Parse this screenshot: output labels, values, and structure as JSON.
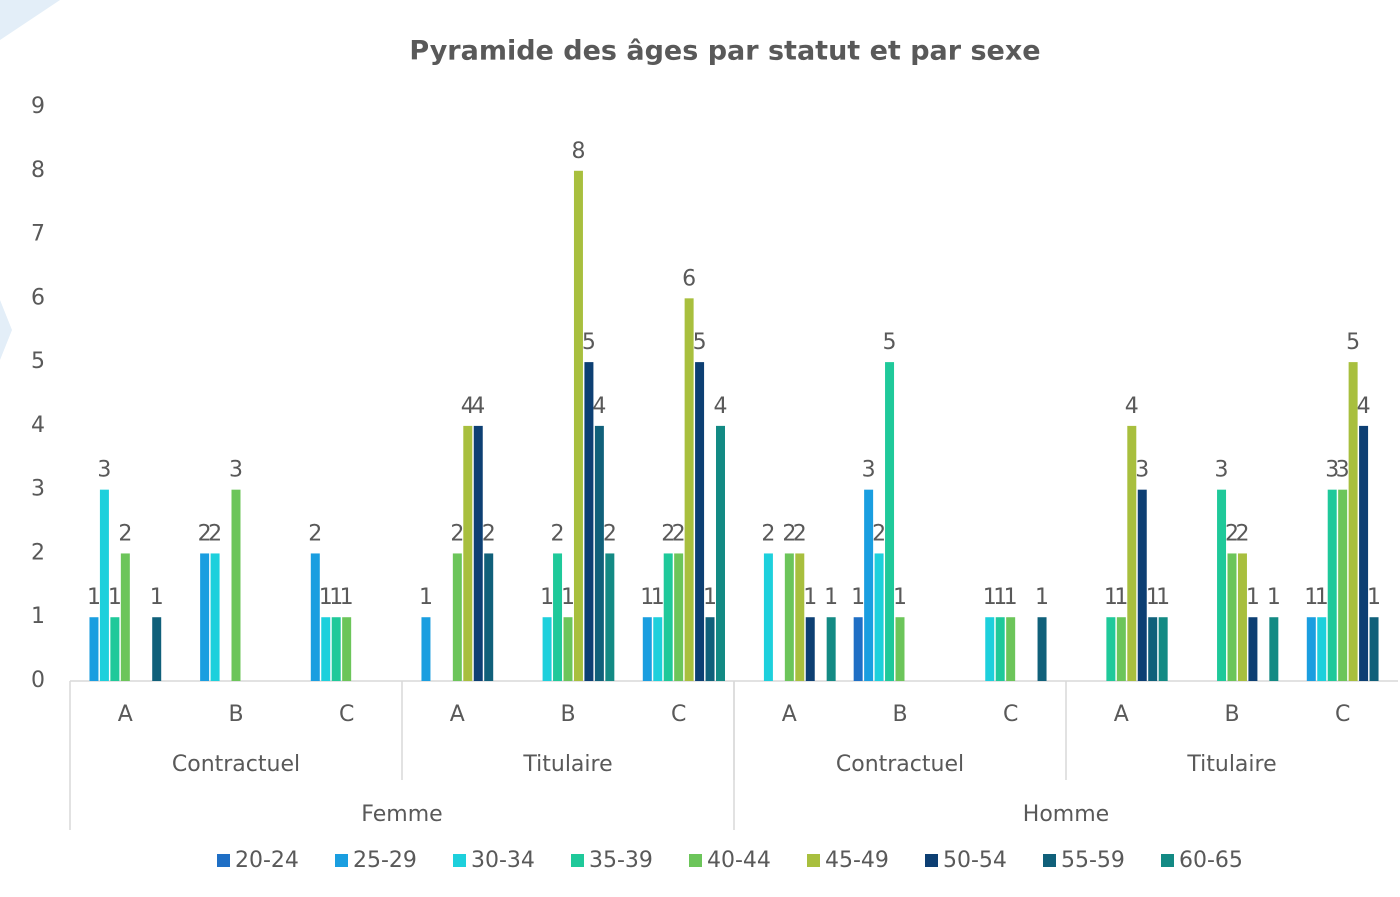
{
  "chart_data": {
    "type": "bar",
    "title": "Pyramide des âges par statut et par sexe",
    "categories": [
      "A",
      "B",
      "C",
      "A",
      "B",
      "C",
      "A",
      "B",
      "C",
      "A",
      "B",
      "C"
    ],
    "groups": [
      "Contractuel",
      "Titulaire",
      "Contractuel",
      "Titulaire"
    ],
    "supergroups": [
      "Femme",
      "Homme"
    ],
    "series": [
      {
        "name": "20-24",
        "color": "#1f6fc5",
        "values": [
          null,
          null,
          null,
          null,
          null,
          null,
          null,
          1,
          null,
          null,
          null,
          null
        ]
      },
      {
        "name": "25-29",
        "color": "#1a9ee0",
        "values": [
          1,
          2,
          2,
          1,
          null,
          1,
          null,
          3,
          null,
          null,
          null,
          1
        ]
      },
      {
        "name": "30-34",
        "color": "#1dd0dc",
        "values": [
          3,
          2,
          1,
          null,
          1,
          1,
          2,
          2,
          1,
          null,
          null,
          1
        ]
      },
      {
        "name": "35-39",
        "color": "#1fc99a",
        "values": [
          1,
          null,
          1,
          null,
          2,
          2,
          null,
          5,
          1,
          1,
          3,
          3
        ]
      },
      {
        "name": "40-44",
        "color": "#6cc55a",
        "values": [
          2,
          3,
          1,
          2,
          1,
          2,
          2,
          1,
          1,
          1,
          2,
          3
        ]
      },
      {
        "name": "45-49",
        "color": "#a8bf3e",
        "values": [
          null,
          null,
          null,
          4,
          8,
          6,
          2,
          null,
          null,
          4,
          2,
          5
        ]
      },
      {
        "name": "50-54",
        "color": "#0d3f73",
        "values": [
          null,
          null,
          null,
          4,
          5,
          5,
          1,
          null,
          null,
          3,
          1,
          4
        ]
      },
      {
        "name": "55-59",
        "color": "#10607a",
        "values": [
          1,
          null,
          null,
          2,
          4,
          1,
          null,
          null,
          1,
          1,
          null,
          1
        ]
      },
      {
        "name": "60-65",
        "color": "#138a84",
        "values": [
          null,
          null,
          null,
          null,
          2,
          4,
          1,
          null,
          null,
          1,
          1,
          null
        ]
      }
    ],
    "ylim": [
      0,
      9
    ],
    "yticks": [
      0,
      1,
      2,
      3,
      4,
      5,
      6,
      7,
      8,
      9
    ],
    "grid": false,
    "legend": "bottom"
  }
}
